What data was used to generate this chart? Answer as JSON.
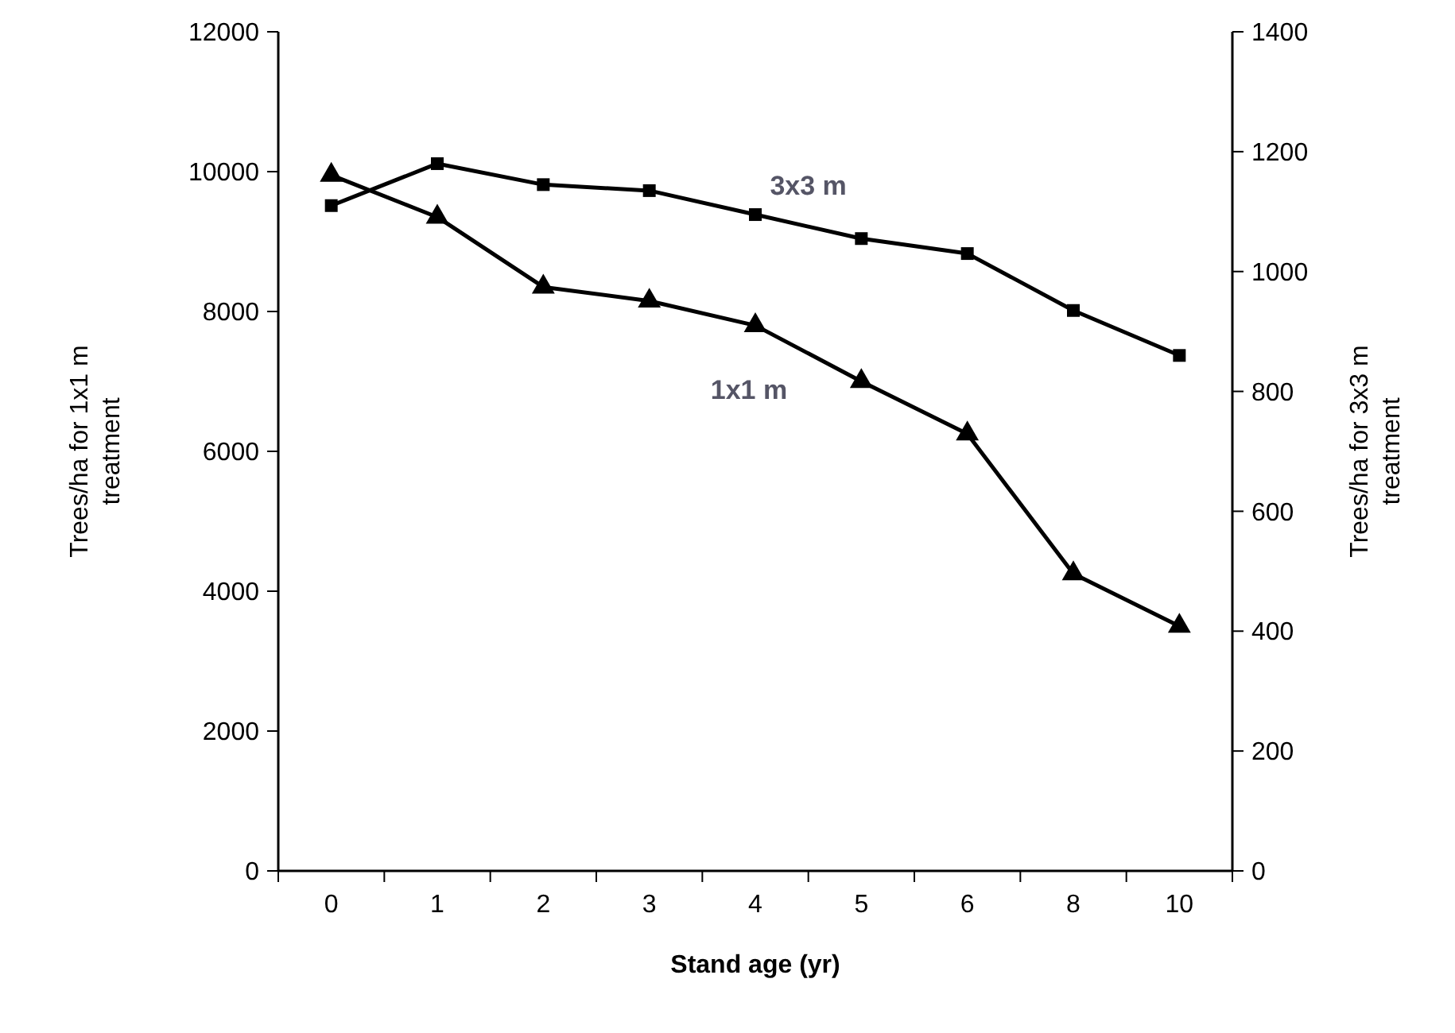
{
  "chart_data": {
    "type": "line",
    "xlabel": "Stand age (yr)",
    "ylabel": "Trees/ha for 1x1 m treatment",
    "y2label": "Trees/ha for 3x3 m treatment",
    "categories": [
      "0",
      "1",
      "2",
      "3",
      "4",
      "5",
      "6",
      "8",
      "10"
    ],
    "series": [
      {
        "name": "1x1 m",
        "color": "#000000",
        "marker": "triangle",
        "values": [
          9950,
          9350,
          8350,
          8150,
          7800,
          7000,
          6250,
          4250,
          3500
        ]
      },
      {
        "name": "3x3 m",
        "color": "#000000",
        "marker": "square",
        "axis": "y2",
        "values": [
          1110,
          1180,
          1145,
          1135,
          1095,
          1055,
          1030,
          935,
          860
        ]
      }
    ],
    "ylim": [
      0,
      12000
    ],
    "yticks": [
      0,
      2000,
      4000,
      6000,
      8000,
      10000,
      12000
    ],
    "y2lim": [
      0,
      1400
    ],
    "y2ticks": [
      0,
      200,
      400,
      600,
      800,
      1000,
      1200,
      1400
    ],
    "grid": false
  }
}
